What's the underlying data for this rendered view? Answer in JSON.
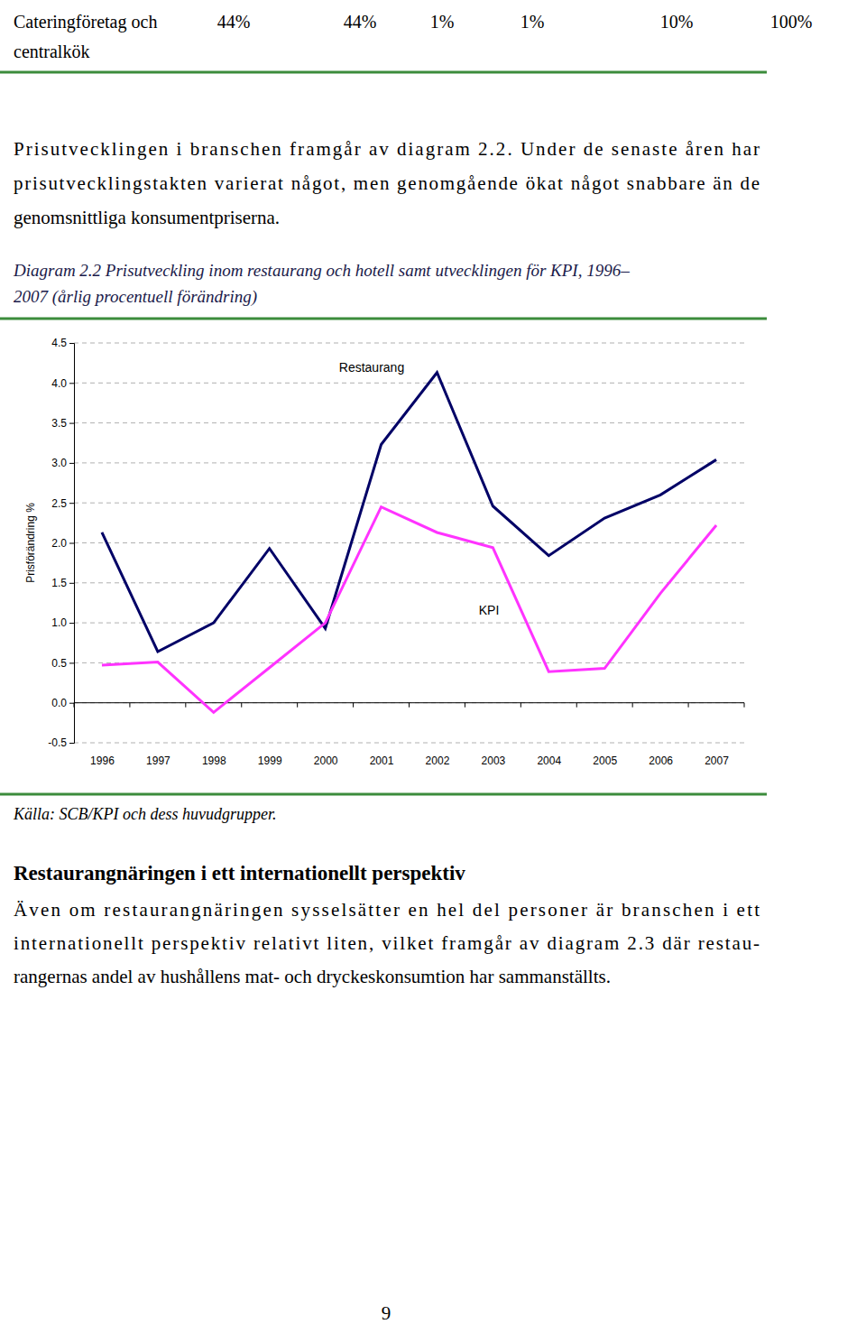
{
  "table_row": {
    "label": [
      "Cateringföretag och",
      "centralkök"
    ],
    "cells": [
      "44%",
      "44%",
      "1%",
      "1%",
      "10%",
      "100%"
    ]
  },
  "paragraph_1": [
    "Prisutvecklingen i branschen framgår av diagram 2.2. Under de senaste åren har",
    "prisutvecklingstakten varierat något, men genomgående ökat något snabbare än de",
    "genomsnittliga konsumentpriserna."
  ],
  "caption": [
    "Diagram 2.2 Prisutveckling inom restaurang och hotell samt utvecklingen för KPI, 1996–",
    "2007 (årlig procentuell förändring)"
  ],
  "chart_data": {
    "type": "line",
    "y_label": "Prisförändring %",
    "categories": [
      "1996",
      "1997",
      "1998",
      "1999",
      "2000",
      "2001",
      "2002",
      "2003",
      "2004",
      "2005",
      "2006",
      "2007"
    ],
    "series": [
      {
        "name": "Restaurang",
        "color": "#000066",
        "values": [
          2.13,
          0.64,
          1.0,
          1.93,
          0.93,
          3.23,
          4.13,
          2.46,
          1.84,
          2.31,
          2.6,
          3.04
        ]
      },
      {
        "name": "KPI",
        "color": "#ff33ff",
        "values": [
          0.47,
          0.51,
          -0.12,
          0.44,
          1.0,
          2.45,
          2.13,
          1.94,
          0.39,
          0.43,
          1.37,
          2.22
        ]
      }
    ],
    "ylim": [
      -0.5,
      4.5
    ],
    "yticks": [
      -0.5,
      {
        "value": 0,
        "label": "0.0"
      },
      0.5,
      {
        "value": 1,
        "label": "1.0"
      },
      1.5,
      {
        "value": 2,
        "label": "2.0"
      },
      2.5,
      {
        "value": 3,
        "label": "3.0"
      },
      3.5,
      {
        "value": 4,
        "label": "4.0"
      },
      4.5
    ],
    "grid": true
  },
  "source": "Källa: SCB/KPI och dess huvudgrupper.",
  "heading": "Restaurangnäringen i ett internationellt perspektiv",
  "paragraph_2": [
    "Även om restaurangnäringen sysselsätter en hel del personer är branschen i ett",
    "internationellt perspektiv relativt liten, vilket framgår av diagram 2.3 där restau-",
    "rangernas andel av hushållens mat- och dryckeskonsumtion har sammanställts."
  ],
  "page_number": "9"
}
